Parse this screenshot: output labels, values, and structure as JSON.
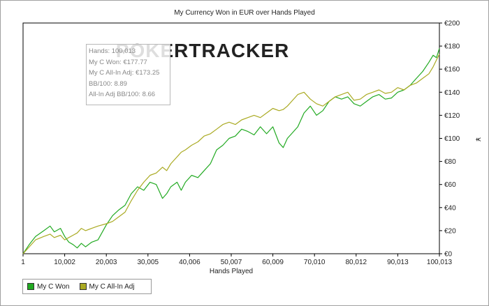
{
  "chart_data": {
    "type": "line",
    "title": "My Currency Won in EUR over Hands Played",
    "xlabel": "Hands Played",
    "ylabel": "¥",
    "xlim": [
      1,
      100013
    ],
    "ylim": [
      0,
      200
    ],
    "x_ticks": [
      "1",
      "10,002",
      "20,003",
      "30,005",
      "40,006",
      "50,007",
      "60,009",
      "70,010",
      "80,012",
      "90,013",
      "100,013"
    ],
    "y_ticks": [
      "€0",
      "€20",
      "€40",
      "€60",
      "€80",
      "€100",
      "€120",
      "€140",
      "€160",
      "€180",
      "€200"
    ],
    "grid": false,
    "legend_position": "bottom-left",
    "watermark": "POKERTRACKER",
    "series": [
      {
        "name": "My C Won",
        "color": "#22aa22",
        "x": [
          1,
          1500,
          3000,
          5000,
          6500,
          7500,
          9000,
          10000,
          11000,
          12000,
          13000,
          14000,
          15000,
          16500,
          18000,
          20000,
          21500,
          23000,
          24500,
          26000,
          27500,
          29000,
          30500,
          32000,
          33500,
          34500,
          35500,
          37000,
          38000,
          39000,
          40500,
          42000,
          43500,
          45000,
          46500,
          48000,
          49500,
          51000,
          52500,
          54000,
          55500,
          57000,
          58500,
          60000,
          61500,
          62500,
          63500,
          64500,
          66000,
          67500,
          69000,
          70500,
          72000,
          73500,
          75000,
          76500,
          78000,
          79500,
          81000,
          82500,
          84000,
          85500,
          87000,
          88500,
          90000,
          91500,
          93000,
          94500,
          96000,
          97500,
          98500,
          99300,
          100013
        ],
        "values": [
          0,
          8,
          15,
          20,
          24,
          19,
          22,
          15,
          10,
          8,
          5,
          9,
          6,
          10,
          12,
          25,
          33,
          38,
          42,
          52,
          58,
          55,
          62,
          60,
          48,
          52,
          58,
          62,
          55,
          62,
          68,
          66,
          72,
          78,
          90,
          94,
          100,
          102,
          108,
          106,
          103,
          110,
          104,
          110,
          96,
          92,
          100,
          104,
          110,
          122,
          128,
          120,
          124,
          132,
          136,
          134,
          136,
          130,
          128,
          132,
          136,
          138,
          134,
          135,
          140,
          142,
          146,
          152,
          158,
          166,
          172,
          170,
          178
        ]
      },
      {
        "name": "My C All-In Adj",
        "color": "#aaaa22",
        "x": [
          1,
          1500,
          3000,
          5000,
          6500,
          7500,
          9000,
          10000,
          11000,
          12000,
          13000,
          14000,
          15000,
          16500,
          18000,
          20000,
          21500,
          23000,
          24500,
          26000,
          27500,
          29000,
          30500,
          32000,
          33500,
          34500,
          35500,
          37000,
          38000,
          39000,
          40500,
          42000,
          43500,
          45000,
          46500,
          48000,
          49500,
          51000,
          52500,
          54000,
          55500,
          57000,
          58500,
          60000,
          61500,
          62500,
          63500,
          64500,
          66000,
          67500,
          69000,
          70500,
          72000,
          73500,
          75000,
          76500,
          78000,
          79500,
          81000,
          82500,
          84000,
          85500,
          87000,
          88500,
          90000,
          91500,
          93000,
          94500,
          96000,
          97500,
          98500,
          99300,
          100013
        ],
        "values": [
          0,
          6,
          12,
          15,
          17,
          14,
          16,
          12,
          14,
          16,
          18,
          22,
          20,
          22,
          24,
          26,
          28,
          32,
          36,
          46,
          55,
          62,
          68,
          70,
          75,
          72,
          78,
          84,
          88,
          90,
          94,
          97,
          102,
          104,
          108,
          112,
          114,
          112,
          116,
          118,
          120,
          118,
          122,
          126,
          124,
          125,
          128,
          132,
          138,
          140,
          134,
          130,
          128,
          132,
          136,
          138,
          140,
          133,
          134,
          138,
          140,
          142,
          139,
          140,
          144,
          142,
          146,
          148,
          152,
          156,
          162,
          168,
          173
        ]
      }
    ]
  },
  "tooltip": {
    "hands": "Hands: 100,013",
    "won": "My C Won: €177.77",
    "allin": "My C All-In Adj: €173.25",
    "bb": "BB/100: 8.89",
    "allin_bb": "All-In Adj BB/100: 8.66"
  }
}
